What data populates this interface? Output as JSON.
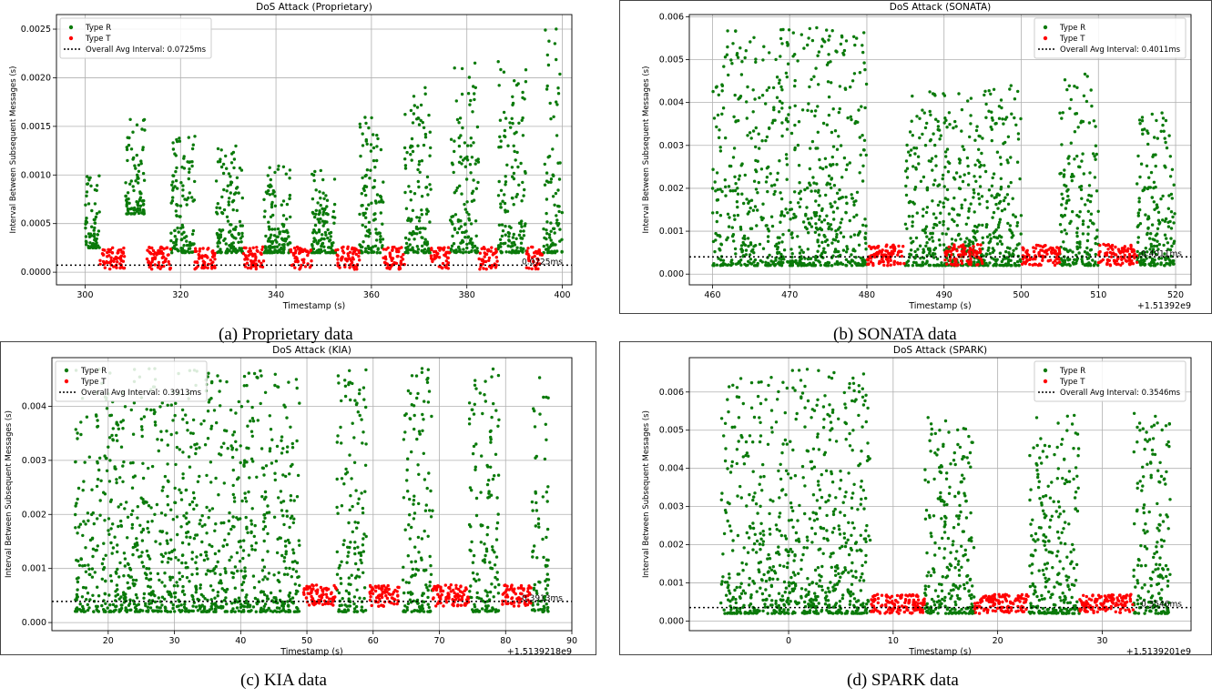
{
  "colors": {
    "type_r": "#0a7a0a",
    "type_t": "#ff0000",
    "avg_line": "#000000",
    "grid": "#b0b0b0"
  },
  "chart_data": [
    {
      "id": "a",
      "type": "scatter",
      "title": "DoS Attack (Proprietary)",
      "xlabel": "Timestamp (s)",
      "ylabel": "Interval Between Subsequent Messages (s)",
      "xlim": [
        294,
        402
      ],
      "ylim": [
        -0.00013,
        0.00265
      ],
      "xticks": [
        300,
        320,
        340,
        360,
        380,
        400
      ],
      "xtick_labels": [
        "300",
        "320",
        "340",
        "360",
        "380",
        "400"
      ],
      "yticks": [
        0,
        0.0005,
        0.001,
        0.0015,
        0.002,
        0.0025
      ],
      "ytick_labels": [
        "0.0000",
        "0.0005",
        "0.0010",
        "0.0015",
        "0.0020",
        "0.0025"
      ],
      "offset_text": "",
      "grid": true,
      "legend_position": "top-left",
      "legend": [
        "Type R",
        "Type T",
        "Overall Avg Interval: 0.0725ms"
      ],
      "avg_value": 7.25e-05,
      "avg_label": "0.0725ms",
      "caption": "(a) Proprietary data",
      "series": [
        {
          "name": "Type R",
          "color": "#0a7a0a",
          "segments": [
            [
              300,
              303,
              0.00025,
              0.001
            ],
            [
              308.5,
              312.5,
              0.0006,
              0.0016
            ],
            [
              318,
              323,
              0.0002,
              0.0014
            ],
            [
              327.5,
              333,
              0.0002,
              0.0013
            ],
            [
              337.5,
              343,
              0.0002,
              0.0011
            ],
            [
              347.5,
              352.5,
              0.0002,
              0.00115
            ],
            [
              357.5,
              362.5,
              0.0002,
              0.0016
            ],
            [
              367,
              372.5,
              0.0002,
              0.0019
            ],
            [
              376.5,
              382.5,
              0.0002,
              0.0022
            ],
            [
              386.5,
              392.5,
              0.0002,
              0.0022
            ],
            [
              396,
              400,
              0.0002,
              0.0026
            ]
          ]
        },
        {
          "name": "Type T",
          "color": "#ff0000",
          "segments": [
            [
              303,
              308.5,
              3e-05,
              0.00026
            ],
            [
              312.5,
              318,
              3e-05,
              0.00026
            ],
            [
              323,
              327.5,
              3e-05,
              0.00026
            ],
            [
              333,
              337.5,
              3e-05,
              0.00026
            ],
            [
              343,
              347.5,
              3e-05,
              0.00026
            ],
            [
              352.5,
              357.5,
              3e-05,
              0.00026
            ],
            [
              362.5,
              367,
              3e-05,
              0.00026
            ],
            [
              372.5,
              376.5,
              3e-05,
              0.00026
            ],
            [
              382.5,
              386.5,
              3e-05,
              0.00026
            ],
            [
              392.5,
              396,
              3e-05,
              0.00026
            ]
          ]
        }
      ]
    },
    {
      "id": "b",
      "type": "scatter",
      "title": "DoS Attack (SONATA)",
      "xlabel": "Timestamp (s)",
      "ylabel": "Interval Between Subsequent Messages (s)",
      "xlim": [
        457,
        522
      ],
      "ylim": [
        -0.00025,
        0.00605
      ],
      "xticks": [
        460,
        470,
        480,
        490,
        500,
        510,
        520
      ],
      "xtick_labels": [
        "460",
        "470",
        "480",
        "490",
        "500",
        "510",
        "520"
      ],
      "yticks": [
        0,
        0.001,
        0.002,
        0.003,
        0.004,
        0.005,
        0.006
      ],
      "ytick_labels": [
        "0.000",
        "0.001",
        "0.002",
        "0.003",
        "0.004",
        "0.005",
        "0.006"
      ],
      "offset_text": "+1.51392e9",
      "grid": true,
      "legend_position": "top-right",
      "legend": [
        "Type R",
        "Type T",
        "Overall Avg Interval: 0.4011ms"
      ],
      "avg_value": 0.0004011,
      "avg_label": "0.4011ms",
      "caption": "(b) SONATA data",
      "series": [
        {
          "name": "Type R",
          "color": "#0a7a0a",
          "segments": [
            [
              460,
              480,
              0.0002,
              0.0058
            ],
            [
              485,
              495,
              0.0002,
              0.0043
            ],
            [
              495,
              500,
              0.0002,
              0.0044
            ],
            [
              505,
              510,
              0.0002,
              0.0047
            ],
            [
              515,
              520,
              0.0002,
              0.0038
            ]
          ]
        },
        {
          "name": "Type T",
          "color": "#ff0000",
          "segments": [
            [
              480,
              485,
              0.0002,
              0.0007
            ],
            [
              490,
              495,
              0.0002,
              0.0007
            ],
            [
              500,
              505,
              0.0002,
              0.0007
            ],
            [
              510,
              515,
              0.0002,
              0.0007
            ]
          ]
        }
      ]
    },
    {
      "id": "c",
      "type": "scatter",
      "title": "DoS Attack (KIA)",
      "xlabel": "Timestamp (s)",
      "ylabel": "Interval Between Subsequent Messages (s)",
      "xlim": [
        11.5,
        90
      ],
      "ylim": [
        -0.00015,
        0.0049
      ],
      "xticks": [
        20,
        30,
        40,
        50,
        60,
        70,
        80,
        90
      ],
      "xtick_labels": [
        "20",
        "30",
        "40",
        "50",
        "60",
        "70",
        "80",
        "90"
      ],
      "yticks": [
        0,
        0.001,
        0.002,
        0.003,
        0.004
      ],
      "ytick_labels": [
        "0.000",
        "0.001",
        "0.002",
        "0.003",
        "0.004"
      ],
      "offset_text": "+1.5139218e9",
      "grid": true,
      "legend_position": "top-left",
      "legend": [
        "Type R",
        "Type T",
        "Overall Avg Interval: 0.3913ms"
      ],
      "avg_value": 0.0003913,
      "avg_label": "0.3913ms",
      "caption": "(c) KIA data",
      "series": [
        {
          "name": "Type R",
          "color": "#0a7a0a",
          "segments": [
            [
              15,
              49,
              0.0002,
              0.0047
            ],
            [
              54.5,
              59,
              0.0002,
              0.0047
            ],
            [
              64.5,
              69,
              0.0002,
              0.0047
            ],
            [
              74.5,
              79,
              0.0002,
              0.0047
            ],
            [
              84,
              86.5,
              0.0002,
              0.0047
            ]
          ]
        },
        {
          "name": "Type T",
          "color": "#ff0000",
          "segments": [
            [
              49.5,
              54.5,
              0.0003,
              0.0007
            ],
            [
              59.5,
              64,
              0.0003,
              0.0007
            ],
            [
              69,
              74.5,
              0.0003,
              0.0007
            ],
            [
              79.5,
              84,
              0.0003,
              0.0007
            ]
          ]
        }
      ]
    },
    {
      "id": "d",
      "type": "scatter",
      "title": "DoS Attack (SPARK)",
      "xlabel": "Timestamp (s)",
      "ylabel": "Interval Between Subsequent Messages (s)",
      "xlim": [
        -9.5,
        38.5
      ],
      "ylim": [
        -0.00025,
        0.0069
      ],
      "xticks": [
        0,
        10,
        20,
        30
      ],
      "xtick_labels": [
        "0",
        "10",
        "20",
        "30"
      ],
      "yticks": [
        0,
        0.001,
        0.002,
        0.003,
        0.004,
        0.005,
        0.006
      ],
      "ytick_labels": [
        "0.000",
        "0.001",
        "0.002",
        "0.003",
        "0.004",
        "0.005",
        "0.006"
      ],
      "offset_text": "+1.5139201e9",
      "grid": true,
      "legend_position": "top-right",
      "legend": [
        "Type R",
        "Type T",
        "Overall Avg Interval: 0.3546ms"
      ],
      "avg_value": 0.0003546,
      "avg_label": "0.3546ms",
      "caption": "(d) SPARK data",
      "series": [
        {
          "name": "Type R",
          "color": "#0a7a0a",
          "segments": [
            [
              -6.5,
              7.8,
              0.0002,
              0.0066
            ],
            [
              13,
              17.8,
              0.0002,
              0.0054
            ],
            [
              23,
              27.8,
              0.0002,
              0.0054
            ],
            [
              33,
              36.5,
              0.0002,
              0.0055
            ]
          ]
        },
        {
          "name": "Type T",
          "color": "#ff0000",
          "segments": [
            [
              7.8,
              13,
              0.0002,
              0.0007
            ],
            [
              17.8,
              23,
              0.0002,
              0.0007
            ],
            [
              27.8,
              33,
              0.0002,
              0.0007
            ]
          ]
        }
      ]
    }
  ]
}
